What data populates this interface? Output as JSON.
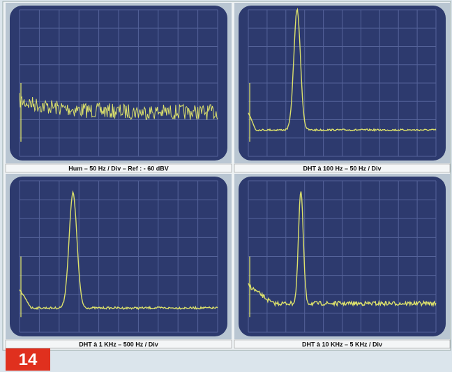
{
  "panels": [
    {
      "caption": "Hum – 50 Hz / Div – Ref : - 60 dBV"
    },
    {
      "caption": "DHT à 100 Hz – 50 Hz / Div"
    },
    {
      "caption": "DHT à 1 KHz – 500 Hz / Div"
    },
    {
      "caption": "DHT à 10 KHz – 5 KHz / Div"
    }
  ],
  "figure_number": "14"
}
